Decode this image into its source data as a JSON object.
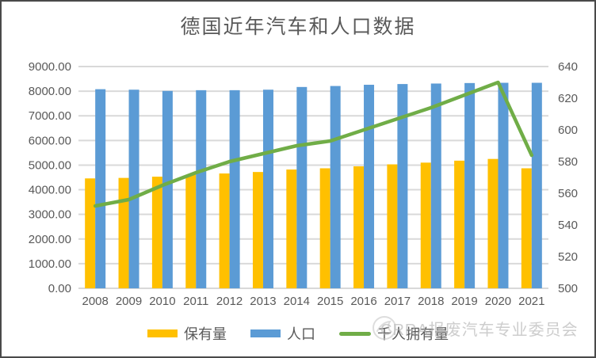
{
  "title": "德国近年汽车和人口数据",
  "watermark": {
    "logo": "circle-swirl-logo",
    "text": "CRRA报废汽车专业委员会"
  },
  "legend": [
    {
      "label": "保有量",
      "color": "#FFC000",
      "type": "bar"
    },
    {
      "label": "人口",
      "color": "#5B9BD5",
      "type": "bar"
    },
    {
      "label": "千人拥有量",
      "color": "#70AD47",
      "type": "line"
    }
  ],
  "colors": {
    "bar_ownership": "#FFC000",
    "bar_population": "#5B9BD5",
    "line_per_capita": "#70AD47",
    "gridline": "#D9D9D9",
    "axis_text": "#595959",
    "title_text": "#595959",
    "watermark": "#BFBFBF"
  },
  "chart_data": {
    "type": "bar",
    "title": "德国近年汽车和人口数据",
    "xlabel": "",
    "ylabel_left": "",
    "ylabel_right": "",
    "grid": true,
    "legend_position": "bottom",
    "categories": [
      "2008",
      "2009",
      "2010",
      "2011",
      "2012",
      "2013",
      "2014",
      "2015",
      "2016",
      "2017",
      "2018",
      "2019",
      "2020",
      "2021"
    ],
    "series": [
      {
        "name": "保有量",
        "type": "bar",
        "axis": "left",
        "color": "#FFC000",
        "values": [
          4460,
          4480,
          4530,
          4610,
          4660,
          4720,
          4820,
          4870,
          4950,
          5030,
          5100,
          5180,
          5250,
          4870
        ]
      },
      {
        "name": "人口",
        "type": "bar",
        "axis": "left",
        "color": "#5B9BD5",
        "values": [
          8080,
          8060,
          8010,
          8040,
          8040,
          8060,
          8170,
          8210,
          8260,
          8290,
          8310,
          8330,
          8340,
          8340
        ]
      },
      {
        "name": "千人拥有量",
        "type": "line",
        "axis": "right",
        "color": "#70AD47",
        "values": [
          552,
          556,
          565,
          573,
          580,
          585,
          590,
          593,
          600,
          607,
          614,
          622,
          630,
          584
        ]
      }
    ],
    "left_axis": {
      "min": 0,
      "max": 9000,
      "tick_labels": [
        "9000.00",
        "8000.00",
        "7000.00",
        "6000.00",
        "5000.00",
        "4000.00",
        "3000.00",
        "2000.00",
        "1000.00",
        "0.00"
      ]
    },
    "right_axis": {
      "min": 500,
      "max": 640,
      "tick_labels": [
        "640",
        "620",
        "600",
        "580",
        "560",
        "540",
        "520",
        "500"
      ]
    }
  }
}
